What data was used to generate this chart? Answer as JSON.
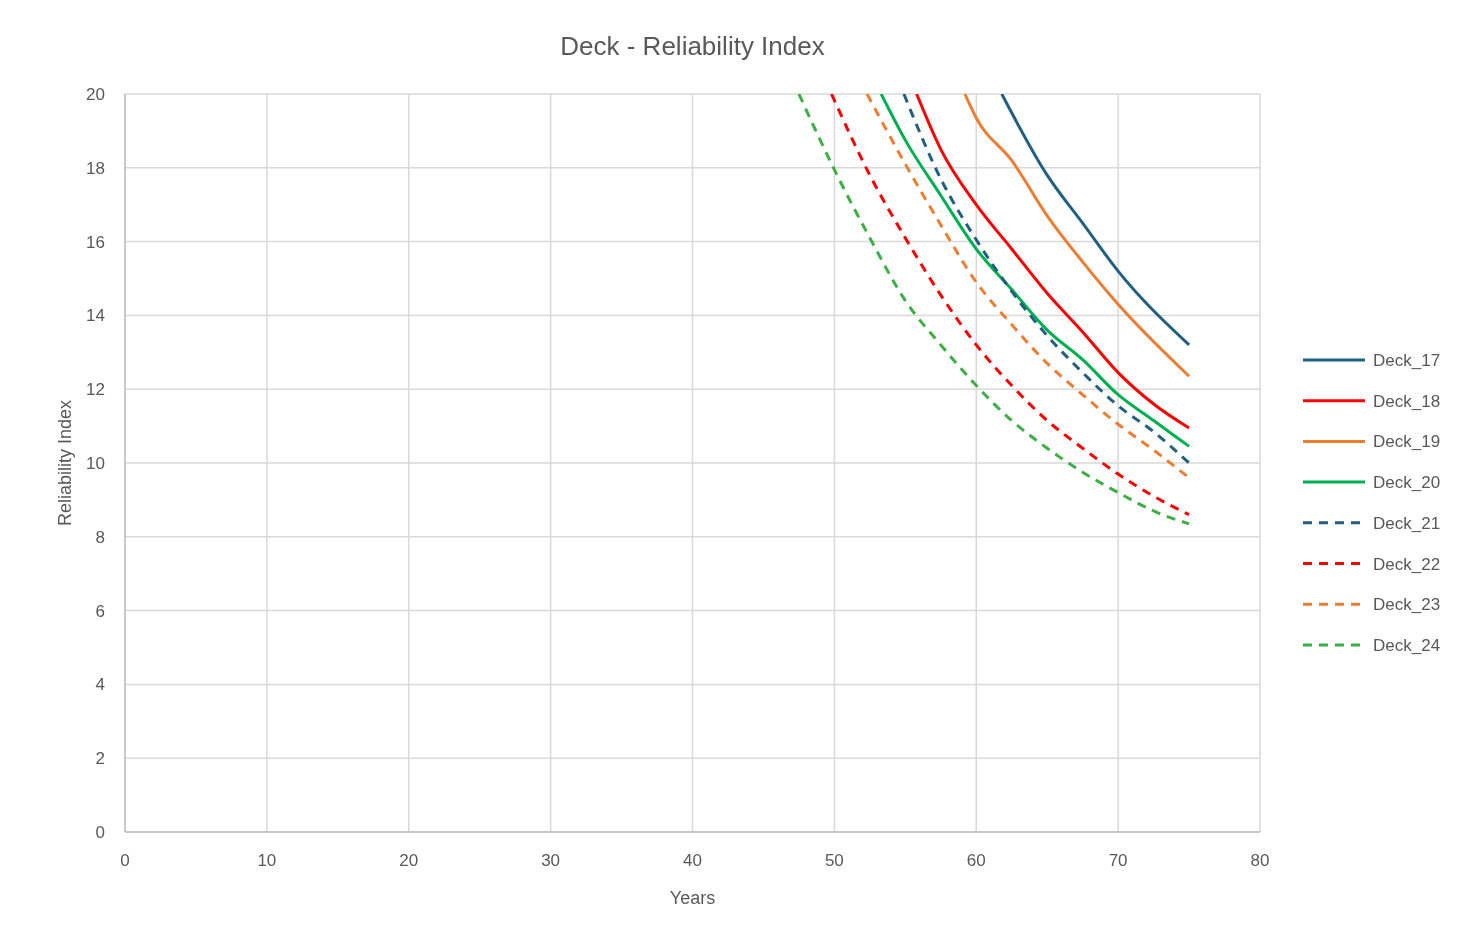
{
  "chart_data": {
    "type": "line",
    "title": "Deck - Reliability Index",
    "xlabel": "Years",
    "ylabel": "Reliability Index",
    "xlim": [
      0,
      80
    ],
    "xticks": [
      0,
      10,
      20,
      30,
      40,
      50,
      60,
      70,
      80
    ],
    "ylim": [
      0,
      20
    ],
    "yticks": [
      0,
      2,
      4,
      6,
      8,
      10,
      12,
      14,
      16,
      18,
      20
    ],
    "grid": true,
    "legend": "right",
    "series": [
      {
        "name": "Deck_17",
        "color": "#215f83",
        "line_style": "solid",
        "x": [
          61.8,
          65,
          67.5,
          70,
          75
        ],
        "values": [
          20,
          17.8,
          16.5,
          15.2,
          13.2
        ]
      },
      {
        "name": "Deck_18",
        "color": "#ff0000",
        "line_style": "solid",
        "x": [
          55.8,
          57.5,
          60,
          62.5,
          65,
          67.5,
          70,
          72.5,
          75
        ],
        "values": [
          20,
          18.5,
          17.0,
          15.8,
          14.6,
          13.55,
          12.45,
          11.6,
          10.95
        ]
      },
      {
        "name": "Deck_19",
        "color": "#ed7d31",
        "line_style": "solid",
        "x": [
          59.2,
          60,
          62.5,
          65,
          67.5,
          70,
          75
        ],
        "values": [
          20,
          19.35,
          18.2,
          16.7,
          15.45,
          14.3,
          12.35
        ]
      },
      {
        "name": "Deck_20",
        "color": "#00b050",
        "line_style": "solid",
        "x": [
          53.3,
          55,
          57.5,
          60,
          62.5,
          65,
          67.5,
          70,
          72.5,
          75
        ],
        "values": [
          20,
          18.75,
          17.25,
          15.8,
          14.7,
          13.6,
          12.8,
          11.85,
          11.15,
          10.45
        ]
      },
      {
        "name": "Deck_21",
        "color": "#215f83",
        "line_style": "dashed",
        "x": [
          54.9,
          57.5,
          60,
          62.5,
          65,
          67.5,
          70,
          72.5,
          75
        ],
        "values": [
          20,
          17.7,
          16.05,
          14.65,
          13.45,
          12.45,
          11.55,
          10.85,
          10.0
        ]
      },
      {
        "name": "Deck_22",
        "color": "#ff0000",
        "line_style": "dashed",
        "x": [
          49.8,
          52.5,
          55,
          57.5,
          60,
          62.5,
          65,
          67.5,
          70,
          72.5,
          75
        ],
        "values": [
          20,
          17.8,
          16.1,
          14.55,
          13.2,
          12.1,
          11.15,
          10.4,
          9.7,
          9.1,
          8.6
        ]
      },
      {
        "name": "Deck_23",
        "color": "#ed7d31",
        "line_style": "dashed",
        "x": [
          52.3,
          55,
          57.5,
          60,
          62.5,
          65,
          67.5,
          70,
          72.5,
          75
        ],
        "values": [
          20,
          18.1,
          16.45,
          14.9,
          13.75,
          12.7,
          11.85,
          11.05,
          10.35,
          9.6
        ]
      },
      {
        "name": "Deck_24",
        "color": "#3cb043",
        "line_style": "dashed",
        "x": [
          47.5,
          50,
          52.5,
          55,
          57.5,
          60,
          62.5,
          65,
          67.5,
          70,
          72.5,
          75
        ],
        "values": [
          20,
          17.95,
          16.1,
          14.4,
          13.2,
          12.1,
          11.15,
          10.4,
          9.75,
          9.2,
          8.7,
          8.35
        ]
      }
    ]
  }
}
